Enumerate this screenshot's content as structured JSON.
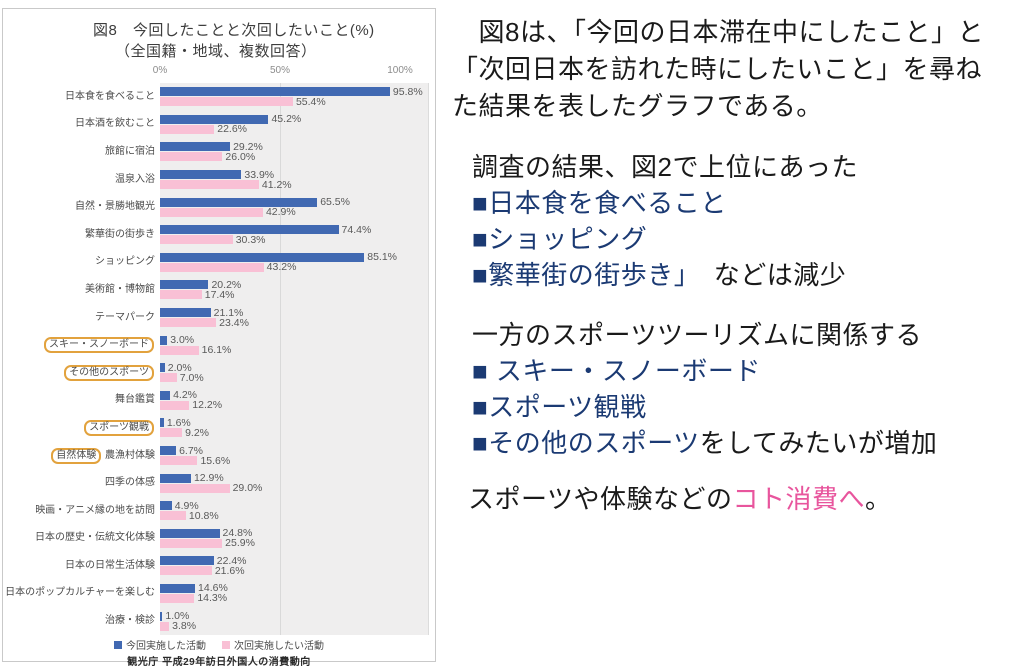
{
  "chart": {
    "title_line1": "図8　今回したことと次回したいこと(%)",
    "title_line2": "（全国籍・地域、複数回答）",
    "source": "観光庁 平成29年訪日外国人の消費動向"
  },
  "chart_data": {
    "type": "bar",
    "orientation": "horizontal",
    "title": "図8 今回したことと次回したいこと(%)（全国籍・地域、複数回答）",
    "xlabel": "",
    "ylabel": "",
    "xlim": [
      0,
      100
    ],
    "x_ticks": [
      "0%",
      "50%",
      "100%"
    ],
    "grid": "vertical-gridline-at-50",
    "legend_position": "bottom",
    "categories": [
      {
        "box": "",
        "rest": "日本食を食べること"
      },
      {
        "box": "",
        "rest": "日本酒を飲むこと"
      },
      {
        "box": "",
        "rest": "旅館に宿泊"
      },
      {
        "box": "",
        "rest": "温泉入浴"
      },
      {
        "box": "",
        "rest": "自然・景勝地観光"
      },
      {
        "box": "",
        "rest": "繁華街の街歩き"
      },
      {
        "box": "",
        "rest": "ショッピング"
      },
      {
        "box": "",
        "rest": "美術館・博物館"
      },
      {
        "box": "",
        "rest": "テーマパーク"
      },
      {
        "box": "スキー・スノーボード",
        "rest": ""
      },
      {
        "box": "その他のスポーツ",
        "rest": ""
      },
      {
        "box": "",
        "rest": "舞台鑑賞"
      },
      {
        "box": "スポーツ観戦",
        "rest": ""
      },
      {
        "box": "自然体験",
        "rest": " 農漁村体験"
      },
      {
        "box": "",
        "rest": "四季の体感"
      },
      {
        "box": "",
        "rest": "映画・アニメ縁の地を訪問"
      },
      {
        "box": "",
        "rest": "日本の歴史・伝統文化体験"
      },
      {
        "box": "",
        "rest": "日本の日常生活体験"
      },
      {
        "box": "",
        "rest": "日本のポップカルチャーを楽しむ"
      },
      {
        "box": "",
        "rest": "治療・検診"
      }
    ],
    "highlighted_categories": [
      "スキー・スノーボード",
      "その他のスポーツ",
      "スポーツ観戦",
      "自然体験"
    ],
    "series": [
      {
        "name": "今回実施した活動",
        "color": "#4169b2",
        "values": [
          95.8,
          45.2,
          29.2,
          33.9,
          65.5,
          74.4,
          85.1,
          20.2,
          21.1,
          3.0,
          2.0,
          4.2,
          1.6,
          6.7,
          12.9,
          4.9,
          24.8,
          22.4,
          14.6,
          1.0
        ]
      },
      {
        "name": "次回実施したい活動",
        "color": "#f9c0d5",
        "values": [
          55.4,
          22.6,
          26.0,
          41.2,
          42.9,
          30.3,
          43.2,
          17.4,
          23.4,
          16.1,
          7.0,
          12.2,
          9.2,
          15.6,
          29.0,
          10.8,
          25.9,
          21.6,
          14.3,
          3.8
        ]
      }
    ]
  },
  "commentary": {
    "para1": "　図8は、「今回の日本滞在中にしたこと」と\n「次回日本を訪れた時にしたいこと」を尋ね\nた結果を表したグラフである。",
    "block1": {
      "intro": "調査の結果、図2で上位にあった",
      "items": [
        {
          "navy": "■日本食を食べること",
          "black": ""
        },
        {
          "navy": "■ショッピング",
          "black": ""
        },
        {
          "navy": "■繁華街の街歩き」",
          "black": "　などは減少"
        }
      ]
    },
    "block2": {
      "intro": "一方のスポーツツーリズムに関係する",
      "items": [
        {
          "navy": "■ スキー・スノーボード",
          "black": ""
        },
        {
          "navy": "■スポーツ観戦",
          "black": ""
        },
        {
          "navy": "■その他のスポーツ",
          "black": "をしてみたいが増加"
        }
      ]
    },
    "closing": {
      "black_prefix": "スポーツや体験などの",
      "pink": "コト消費へ",
      "black_suffix": "。"
    }
  },
  "colors": {
    "bar_current": "#4169b2",
    "bar_next": "#f9c0d5",
    "highlight_box": "#e2a23d",
    "navy_text": "#1b3a73",
    "pink_text": "#e8559d",
    "plot_background": "#efeeee"
  }
}
